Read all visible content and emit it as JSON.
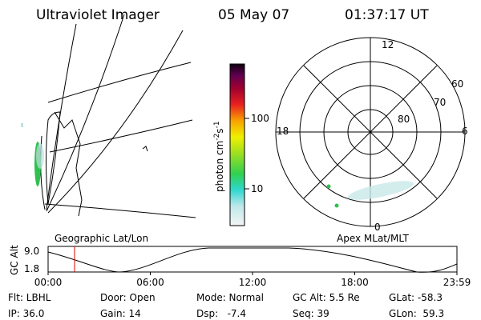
{
  "header": {
    "instrument": "Ultraviolet Imager",
    "date": "05 May 07",
    "time": "01:37:17 UT"
  },
  "colorbar": {
    "label": [
      "photon cm",
      "-2",
      "s",
      "-1"
    ],
    "ticks": [
      "100",
      "10"
    ]
  },
  "map": {
    "label": "Geographic Lat/Lon"
  },
  "polar_plot": {
    "label": "Apex MLat/MLT",
    "mlt_labels": [
      "12",
      "18",
      "6",
      "0"
    ],
    "lat_labels": [
      "60",
      "70",
      "80"
    ]
  },
  "altitude_plot": {
    "axis_label": "GC Alt",
    "ticks": [
      "9.0",
      "1.8"
    ],
    "times": [
      "00:00",
      "06:00",
      "12:00",
      "18:00",
      "23:59"
    ]
  },
  "status": {
    "rows": [
      [
        "Flt: LBHL",
        "Door: Open",
        "Mode: Normal",
        "GC Alt: 5.5 Re",
        "GLat: -58.3"
      ],
      [
        "IP: 36.0",
        "Gain: 14",
        "Dsp:   -7.4",
        "Seq: 39",
        "GLon:  59.3"
      ]
    ]
  }
}
